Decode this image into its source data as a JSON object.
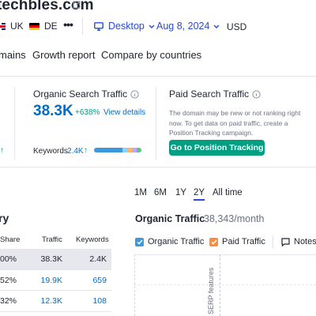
{
  "header": {
    "domain": "techbles.com",
    "flags": [
      {
        "label": "UK",
        "icon": "uk-flag-icon"
      },
      {
        "label": "DE",
        "icon": "de-flag-icon"
      }
    ],
    "more_label": "•••",
    "device": "Desktop",
    "date": "Aug 8, 2024",
    "currency": "USD"
  },
  "tabs": [
    {
      "label": "mains"
    },
    {
      "label": "Growth report"
    },
    {
      "label": "Compare by countries"
    }
  ],
  "organic": {
    "label": "Organic Search Traffic",
    "value": "38.3K",
    "change": "+638%",
    "view_details": "View details",
    "keywords_label": "Keywords",
    "keywords_value": "2.4K",
    "left_arrow": "↑",
    "kw_arrow": "↑",
    "bar_colors": [
      "#3c99dc",
      "#3c99dc",
      "#8fd3f4",
      "#ffb55a",
      "#c1a6f5",
      "#5ec486"
    ]
  },
  "paid": {
    "label": "Paid Search Traffic",
    "message": "The domain may be new or not ranking right now. To get data on paid traffic, create a Position Tracking campaign.",
    "button": "Go to Position Tracking"
  },
  "table": {
    "title": "ry",
    "headers": {
      "share": "Share",
      "traffic": "Traffic",
      "keywords": "Keywords"
    },
    "rows": [
      {
        "share": "00%",
        "traffic": "38.3K",
        "keywords": "2.4K",
        "selected": true
      },
      {
        "share": "52%",
        "traffic": "19.9K",
        "keywords": "659",
        "selected": false
      },
      {
        "share": "32%",
        "traffic": "12.3K",
        "keywords": "108",
        "selected": false
      }
    ]
  },
  "chart": {
    "periods": [
      "1M",
      "6M",
      "1Y",
      "2Y",
      "All time"
    ],
    "active_period": "2Y",
    "title": "Organic Traffic",
    "subtitle": "38,343/month",
    "legend": [
      {
        "label": "Organic Traffic",
        "color": "#3c99dc"
      },
      {
        "label": "Paid Traffic",
        "color": "#ff8c3a"
      }
    ],
    "notes_label": "Notes",
    "serp_label": "SERP features"
  },
  "colors": {
    "accent": "#2b4acb",
    "link": "#006dca",
    "positive": "#009f81",
    "button": "#009f81"
  }
}
